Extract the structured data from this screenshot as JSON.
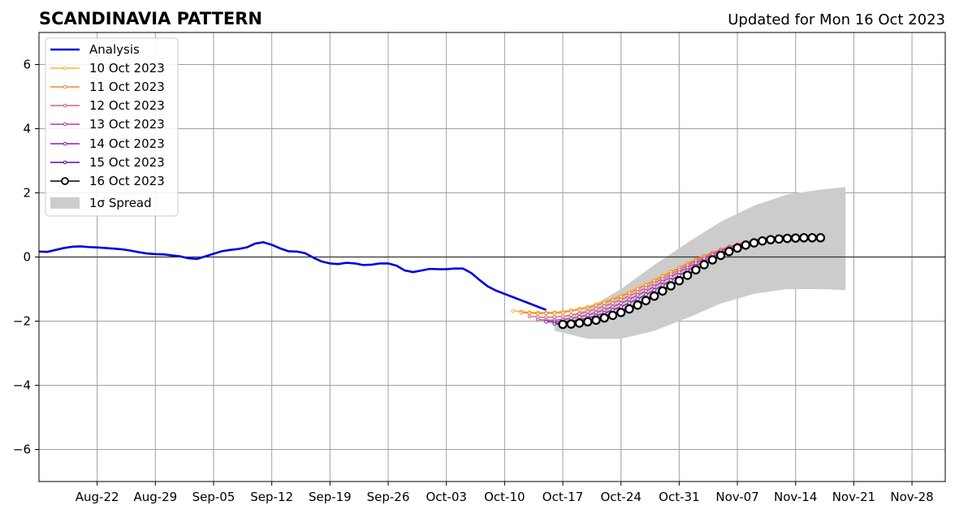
{
  "chart_data": {
    "type": "line",
    "title": "SCANDINAVIA PATTERN",
    "subtitle": "Updated for Mon 16 Oct 2023",
    "xlabel": "",
    "ylabel": "",
    "x_range": [
      "2023-08-15",
      "2023-12-02"
    ],
    "ylim": [
      -7,
      7
    ],
    "grid": true,
    "legend_position": "top-left",
    "x_ticks": [
      {
        "date": "2023-08-22",
        "label": "Aug-22"
      },
      {
        "date": "2023-08-29",
        "label": "Aug-29"
      },
      {
        "date": "2023-09-05",
        "label": "Sep-05"
      },
      {
        "date": "2023-09-12",
        "label": "Sep-12"
      },
      {
        "date": "2023-09-19",
        "label": "Sep-19"
      },
      {
        "date": "2023-09-26",
        "label": "Sep-26"
      },
      {
        "date": "2023-10-03",
        "label": "Oct-03"
      },
      {
        "date": "2023-10-10",
        "label": "Oct-10"
      },
      {
        "date": "2023-10-17",
        "label": "Oct-17"
      },
      {
        "date": "2023-10-24",
        "label": "Oct-24"
      },
      {
        "date": "2023-10-31",
        "label": "Oct-31"
      },
      {
        "date": "2023-11-07",
        "label": "Nov-07"
      },
      {
        "date": "2023-11-14",
        "label": "Nov-14"
      },
      {
        "date": "2023-11-21",
        "label": "Nov-21"
      },
      {
        "date": "2023-11-28",
        "label": "Nov-28"
      }
    ],
    "y_ticks": [
      {
        "value": 6,
        "label": "6"
      },
      {
        "value": 4,
        "label": "4"
      },
      {
        "value": 2,
        "label": "2"
      },
      {
        "value": 0,
        "label": "0"
      },
      {
        "value": -2,
        "label": "−2"
      },
      {
        "value": -4,
        "label": "−4"
      },
      {
        "value": -6,
        "label": "−6"
      }
    ],
    "analysis": {
      "name": "Analysis",
      "color": "#0000dd",
      "points": [
        {
          "date": "2023-08-15",
          "value": 0.17
        },
        {
          "date": "2023-08-16",
          "value": 0.16
        },
        {
          "date": "2023-08-17",
          "value": 0.22
        },
        {
          "date": "2023-08-18",
          "value": 0.28
        },
        {
          "date": "2023-08-19",
          "value": 0.32
        },
        {
          "date": "2023-08-20",
          "value": 0.33
        },
        {
          "date": "2023-08-21",
          "value": 0.31
        },
        {
          "date": "2023-08-22",
          "value": 0.3
        },
        {
          "date": "2023-08-23",
          "value": 0.28
        },
        {
          "date": "2023-08-24",
          "value": 0.26
        },
        {
          "date": "2023-08-25",
          "value": 0.24
        },
        {
          "date": "2023-08-26",
          "value": 0.2
        },
        {
          "date": "2023-08-27",
          "value": 0.15
        },
        {
          "date": "2023-08-28",
          "value": 0.11
        },
        {
          "date": "2023-08-29",
          "value": 0.09
        },
        {
          "date": "2023-08-30",
          "value": 0.08
        },
        {
          "date": "2023-08-31",
          "value": 0.05
        },
        {
          "date": "2023-09-01",
          "value": 0.02
        },
        {
          "date": "2023-09-02",
          "value": -0.04
        },
        {
          "date": "2023-09-03",
          "value": -0.06
        },
        {
          "date": "2023-09-04",
          "value": 0.02
        },
        {
          "date": "2023-09-05",
          "value": 0.1
        },
        {
          "date": "2023-09-06",
          "value": 0.18
        },
        {
          "date": "2023-09-07",
          "value": 0.22
        },
        {
          "date": "2023-09-08",
          "value": 0.25
        },
        {
          "date": "2023-09-09",
          "value": 0.3
        },
        {
          "date": "2023-09-10",
          "value": 0.42
        },
        {
          "date": "2023-09-11",
          "value": 0.46
        },
        {
          "date": "2023-09-12",
          "value": 0.38
        },
        {
          "date": "2023-09-13",
          "value": 0.27
        },
        {
          "date": "2023-09-14",
          "value": 0.18
        },
        {
          "date": "2023-09-15",
          "value": 0.17
        },
        {
          "date": "2023-09-16",
          "value": 0.12
        },
        {
          "date": "2023-09-17",
          "value": -0.02
        },
        {
          "date": "2023-09-18",
          "value": -0.14
        },
        {
          "date": "2023-09-19",
          "value": -0.2
        },
        {
          "date": "2023-09-20",
          "value": -0.22
        },
        {
          "date": "2023-09-21",
          "value": -0.18
        },
        {
          "date": "2023-09-22",
          "value": -0.2
        },
        {
          "date": "2023-09-23",
          "value": -0.25
        },
        {
          "date": "2023-09-24",
          "value": -0.24
        },
        {
          "date": "2023-09-25",
          "value": -0.2
        },
        {
          "date": "2023-09-26",
          "value": -0.2
        },
        {
          "date": "2023-09-27",
          "value": -0.27
        },
        {
          "date": "2023-09-28",
          "value": -0.42
        },
        {
          "date": "2023-09-29",
          "value": -0.47
        },
        {
          "date": "2023-09-30",
          "value": -0.42
        },
        {
          "date": "2023-10-01",
          "value": -0.37
        },
        {
          "date": "2023-10-02",
          "value": -0.38
        },
        {
          "date": "2023-10-03",
          "value": -0.38
        },
        {
          "date": "2023-10-04",
          "value": -0.36
        },
        {
          "date": "2023-10-05",
          "value": -0.36
        },
        {
          "date": "2023-10-06",
          "value": -0.5
        },
        {
          "date": "2023-10-07",
          "value": -0.72
        },
        {
          "date": "2023-10-08",
          "value": -0.92
        },
        {
          "date": "2023-10-09",
          "value": -1.05
        },
        {
          "date": "2023-10-10",
          "value": -1.15
        },
        {
          "date": "2023-10-11",
          "value": -1.25
        },
        {
          "date": "2023-10-12",
          "value": -1.35
        },
        {
          "date": "2023-10-13",
          "value": -1.45
        },
        {
          "date": "2023-10-14",
          "value": -1.55
        },
        {
          "date": "2023-10-15",
          "value": -1.65
        }
      ]
    },
    "spread": {
      "name": "1σ Spread",
      "color": "#cccccc",
      "upper": [
        {
          "date": "2023-10-16",
          "value": -2.0
        },
        {
          "date": "2023-10-20",
          "value": -1.6
        },
        {
          "date": "2023-10-24",
          "value": -1.0
        },
        {
          "date": "2023-10-28",
          "value": -0.25
        },
        {
          "date": "2023-11-01",
          "value": 0.45
        },
        {
          "date": "2023-11-05",
          "value": 1.1
        },
        {
          "date": "2023-11-09",
          "value": 1.6
        },
        {
          "date": "2023-11-13",
          "value": 1.95
        },
        {
          "date": "2023-11-17",
          "value": 2.1
        },
        {
          "date": "2023-11-20",
          "value": 2.18
        }
      ],
      "lower": [
        {
          "date": "2023-10-16",
          "value": -2.3
        },
        {
          "date": "2023-10-20",
          "value": -2.55
        },
        {
          "date": "2023-10-24",
          "value": -2.55
        },
        {
          "date": "2023-10-28",
          "value": -2.3
        },
        {
          "date": "2023-11-01",
          "value": -1.9
        },
        {
          "date": "2023-11-05",
          "value": -1.45
        },
        {
          "date": "2023-11-09",
          "value": -1.15
        },
        {
          "date": "2023-11-13",
          "value": -1.0
        },
        {
          "date": "2023-11-17",
          "value": -1.0
        },
        {
          "date": "2023-11-20",
          "value": -1.03
        }
      ]
    },
    "forecasts": [
      {
        "name": "10 Oct 2023",
        "color": "#fcb32f",
        "start": "2023-10-11",
        "values": [
          -1.68,
          -1.7,
          -1.72,
          -1.73,
          -1.73,
          -1.72,
          -1.7,
          -1.66,
          -1.61,
          -1.55,
          -1.47,
          -1.39,
          -1.3,
          -1.19,
          -1.08,
          -0.96,
          -0.84,
          -0.71,
          -0.58,
          -0.45,
          -0.32,
          -0.19,
          -0.07,
          0.04,
          0.14,
          0.23,
          0.31,
          0.38,
          0.44,
          0.49,
          0.53,
          0.56,
          0.58,
          0.59,
          0.6
        ]
      },
      {
        "name": "11 Oct 2023",
        "color": "#f4862f",
        "start": "2023-10-12",
        "values": [
          -1.73,
          -1.75,
          -1.76,
          -1.76,
          -1.75,
          -1.73,
          -1.69,
          -1.64,
          -1.58,
          -1.51,
          -1.43,
          -1.33,
          -1.23,
          -1.12,
          -1.0,
          -0.87,
          -0.74,
          -0.61,
          -0.47,
          -0.34,
          -0.21,
          -0.09,
          0.03,
          0.14,
          0.24,
          0.33,
          0.4,
          0.47,
          0.52,
          0.56,
          0.59,
          0.61,
          0.62,
          0.62
        ]
      },
      {
        "name": "12 Oct 2023",
        "color": "#e0607a",
        "start": "2023-10-13",
        "values": [
          -1.85,
          -1.87,
          -1.88,
          -1.87,
          -1.85,
          -1.81,
          -1.76,
          -1.7,
          -1.62,
          -1.53,
          -1.44,
          -1.33,
          -1.21,
          -1.09,
          -0.96,
          -0.82,
          -0.68,
          -0.54,
          -0.4,
          -0.26,
          -0.13,
          -0.01,
          0.11,
          0.22,
          0.31,
          0.39,
          0.46,
          0.52,
          0.56,
          0.6,
          0.62,
          0.63,
          0.64
        ]
      },
      {
        "name": "13 Oct 2023",
        "color": "#b73a9c",
        "start": "2023-10-14",
        "values": [
          -1.95,
          -1.97,
          -1.97,
          -1.95,
          -1.92,
          -1.87,
          -1.81,
          -1.73,
          -1.65,
          -1.55,
          -1.44,
          -1.32,
          -1.19,
          -1.06,
          -0.92,
          -0.77,
          -0.62,
          -0.47,
          -0.33,
          -0.19,
          -0.06,
          0.07,
          0.18,
          0.29,
          0.38,
          0.45,
          0.52,
          0.57,
          0.61,
          0.64,
          0.65,
          0.66
        ]
      },
      {
        "name": "14 Oct 2023",
        "color": "#8b1fa6",
        "start": "2023-10-15",
        "values": [
          -2.02,
          -2.03,
          -2.02,
          -2.0,
          -1.96,
          -1.9,
          -1.83,
          -1.75,
          -1.65,
          -1.55,
          -1.43,
          -1.31,
          -1.17,
          -1.03,
          -0.88,
          -0.73,
          -0.57,
          -0.42,
          -0.27,
          -0.13,
          0.0,
          0.13,
          0.24,
          0.34,
          0.43,
          0.5,
          0.56,
          0.6,
          0.63,
          0.65,
          0.66
        ]
      },
      {
        "name": "15 Oct 2023",
        "color": "#4c11a6",
        "start": "2023-10-16",
        "values": [
          -2.08,
          -2.09,
          -2.08,
          -2.05,
          -2.01,
          -1.95,
          -1.87,
          -1.78,
          -1.68,
          -1.57,
          -1.45,
          -1.31,
          -1.17,
          -1.02,
          -0.87,
          -0.71,
          -0.55,
          -0.39,
          -0.24,
          -0.1,
          0.04,
          0.16,
          0.27,
          0.37,
          0.45,
          0.51,
          0.56,
          0.59,
          0.61,
          0.62
        ]
      },
      {
        "name": "16 Oct 2023",
        "color": "#000000",
        "start": "2023-10-17",
        "values": [
          -2.1,
          -2.09,
          -2.06,
          -2.02,
          -1.97,
          -1.9,
          -1.82,
          -1.73,
          -1.62,
          -1.5,
          -1.36,
          -1.22,
          -1.06,
          -0.9,
          -0.74,
          -0.57,
          -0.4,
          -0.24,
          -0.09,
          0.05,
          0.17,
          0.28,
          0.37,
          0.44,
          0.5,
          0.54,
          0.56,
          0.58,
          0.59,
          0.6,
          0.6,
          0.6
        ]
      }
    ],
    "legend": [
      {
        "label": "Analysis"
      },
      {
        "label": "10 Oct 2023"
      },
      {
        "label": "11 Oct 2023"
      },
      {
        "label": "12 Oct 2023"
      },
      {
        "label": "13 Oct 2023"
      },
      {
        "label": "14 Oct 2023"
      },
      {
        "label": "15 Oct 2023"
      },
      {
        "label": "16 Oct 2023"
      },
      {
        "label": "1σ Spread"
      }
    ]
  }
}
